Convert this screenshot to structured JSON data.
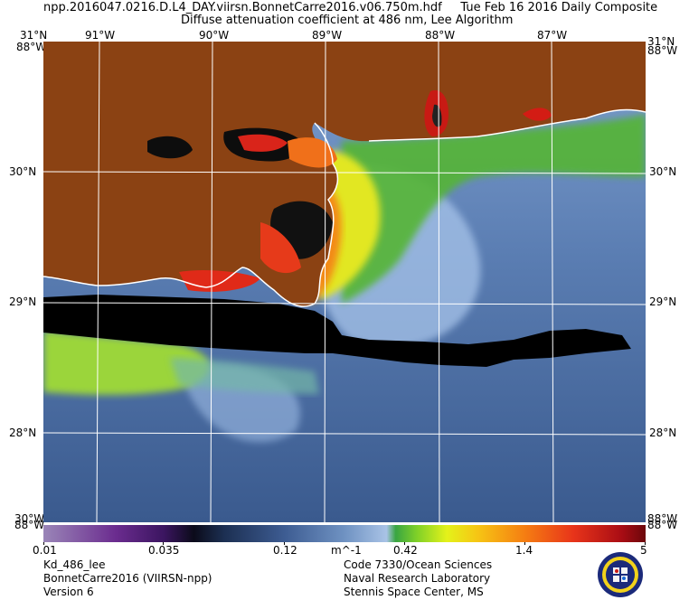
{
  "header": {
    "line1": "npp.2016047.0216.D.L4_DAY.viirsn.BonnetCarre2016.v06.750m.hdf     Tue Feb 16 2016 Daily Composite",
    "line2": "Diffuse attenuation coefficient at 486 nm, Lee Algorithm"
  },
  "lon_labels": [
    {
      "label": "91°W",
      "lon": -91
    },
    {
      "label": "90°W",
      "lon": -90
    },
    {
      "label": "89°W",
      "lon": -89
    },
    {
      "label": "88°W",
      "lon": -88
    },
    {
      "label": "87°W",
      "lon": -87
    }
  ],
  "lat_labels": [
    {
      "label": "30°N",
      "lat": 30
    },
    {
      "label": "29°N",
      "lat": 29
    },
    {
      "label": "28°N",
      "lat": 28
    }
  ],
  "corner_labels": {
    "top_left_lat": "31°N",
    "top_left_lon": "88°W",
    "top_right_lat": "31°N",
    "top_right_lon": "88°W",
    "bottom_left_lat": "30°W",
    "bottom_left_lon": "88°W",
    "bottom_right_lat": "88°W",
    "bottom_right_lon": "88°W"
  },
  "colorbar": {
    "tick_labels": [
      "0.01",
      "0.035",
      "0.12",
      "m^-1",
      "0.42",
      "1.4",
      "5"
    ],
    "unit": "m^-1"
  },
  "footer_left": [
    "Kd_486_lee",
    "BonnetCarre2016 (VIIRSN-npp)",
    "Version 6"
  ],
  "footer_right": [
    "Code 7330/Ocean Sciences",
    "Naval Research Laboratory",
    "Stennis Space Center, MS"
  ],
  "colors": {
    "land": "#8b4213",
    "ocean_deep": "#3f5f93",
    "ocean_light": "#98b7e2",
    "turbid_green": "#5cc232",
    "high_red": "#d81d14",
    "gridline": "#ffffff"
  },
  "logo_icon": "nrl-seal-icon"
}
